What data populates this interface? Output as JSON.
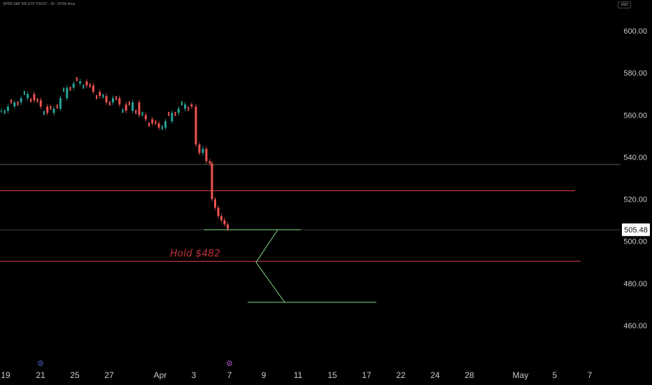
{
  "header": {
    "symbol_info": "SPDR S&P 500 ETF TRUST · 30 · NYSE Arca",
    "currency": "USD"
  },
  "chart_data": {
    "type": "candlestick",
    "title": "SPDR S&P 500 ETF TRUST · 30 · NYSE Arca",
    "ylim": [
      447,
      617
    ],
    "y_ticks": [
      600,
      580,
      560,
      540,
      520,
      500,
      480,
      460
    ],
    "y_tick_labels": [
      "600.00",
      "580.00",
      "560.00",
      "540.00",
      "520.00",
      "500.00",
      "480.00",
      "460.00"
    ],
    "x_tick_labels": [
      "19",
      "21",
      "25",
      "27",
      "Apr",
      "3",
      "7",
      "9",
      "11",
      "15",
      "17",
      "22",
      "24",
      "28",
      "May",
      "5",
      "7"
    ],
    "last_price": 505.48,
    "last_price_label": "505.48",
    "horizontal_levels": [
      {
        "name": "upper-resistance",
        "value": 536.5,
        "color": "#5a5a5a"
      },
      {
        "name": "red-level-1",
        "value": 524,
        "color": "#e0404a"
      },
      {
        "name": "red-level-2",
        "value": 490.5,
        "color": "#e0404a"
      }
    ],
    "annotation": {
      "text": "Hold $482",
      "color": "#c0313a"
    },
    "projection_path": {
      "color": "#7fd67f",
      "values": [
        505.5,
        505.5,
        490,
        471,
        471
      ]
    },
    "price_path": [
      562,
      564,
      566,
      568,
      570,
      567,
      564,
      561,
      563,
      568,
      573,
      575,
      576,
      574,
      571,
      569,
      566,
      568,
      565,
      562,
      566,
      560,
      558,
      556,
      554,
      557,
      561,
      563,
      565,
      564,
      546,
      542,
      544,
      538,
      537,
      520,
      516,
      512,
      510,
      508,
      506
    ],
    "colors": {
      "up": "#26a69a",
      "down": "#ef5350",
      "background": "#000000"
    }
  }
}
